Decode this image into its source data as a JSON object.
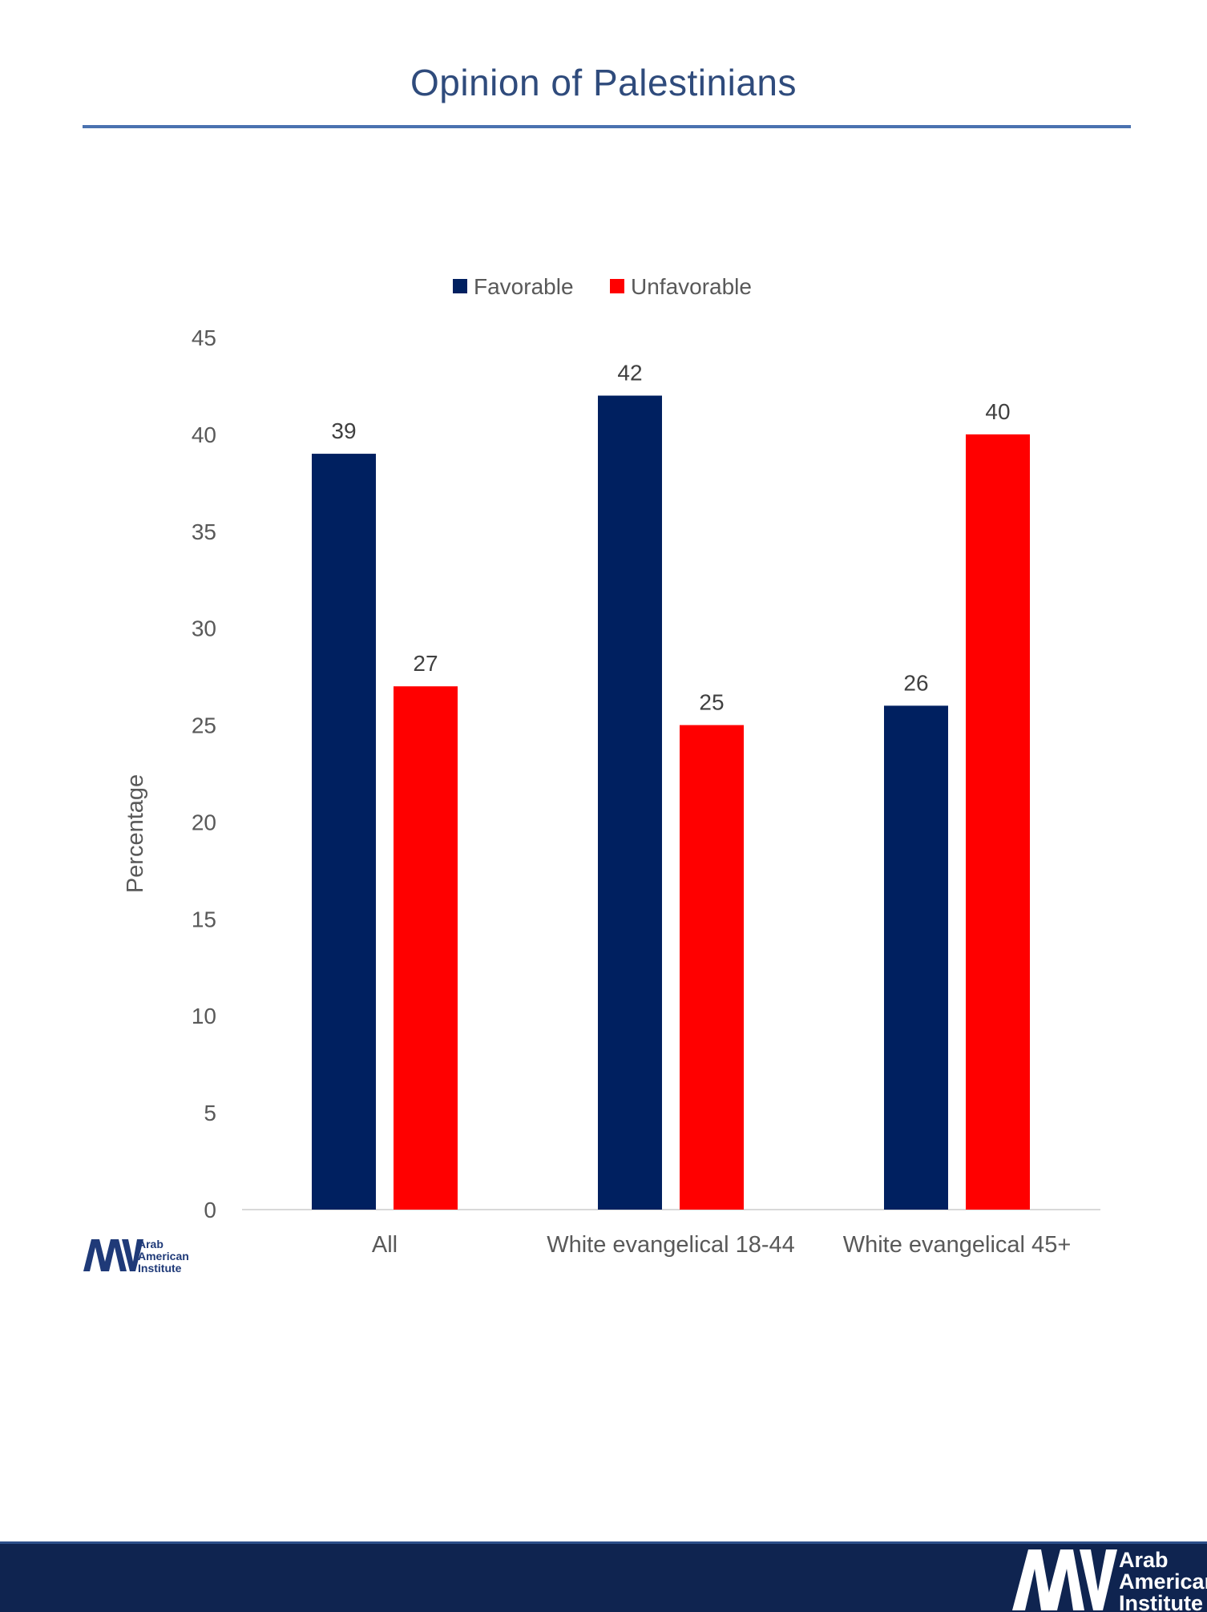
{
  "page": {
    "title": "Opinion of Palestinians"
  },
  "logos": {
    "small": {
      "line1": "Arab",
      "line2": "American",
      "line3": "Institute"
    },
    "footer": {
      "line1": "Arab",
      "line2": "American",
      "line3": "Institute"
    }
  },
  "colors": {
    "title": "#2f4b7c",
    "rule": "#4a72b0",
    "favorable": "#002060",
    "unfavorable": "#ff0000",
    "footer": "#0f2450"
  },
  "chart_data": {
    "type": "bar",
    "title": "",
    "xlabel": "",
    "ylabel": "Percentage",
    "ylim": [
      0,
      45
    ],
    "yticks": [
      0,
      5,
      10,
      15,
      20,
      25,
      30,
      35,
      40,
      45
    ],
    "grid": false,
    "legend_position": "top",
    "categories": [
      "All",
      "White evangelical 18-44",
      "White evangelical 45+"
    ],
    "series": [
      {
        "name": "Favorable",
        "color": "#002060",
        "values": [
          39,
          42,
          26
        ]
      },
      {
        "name": "Unfavorable",
        "color": "#ff0000",
        "values": [
          27,
          25,
          40
        ]
      }
    ]
  }
}
